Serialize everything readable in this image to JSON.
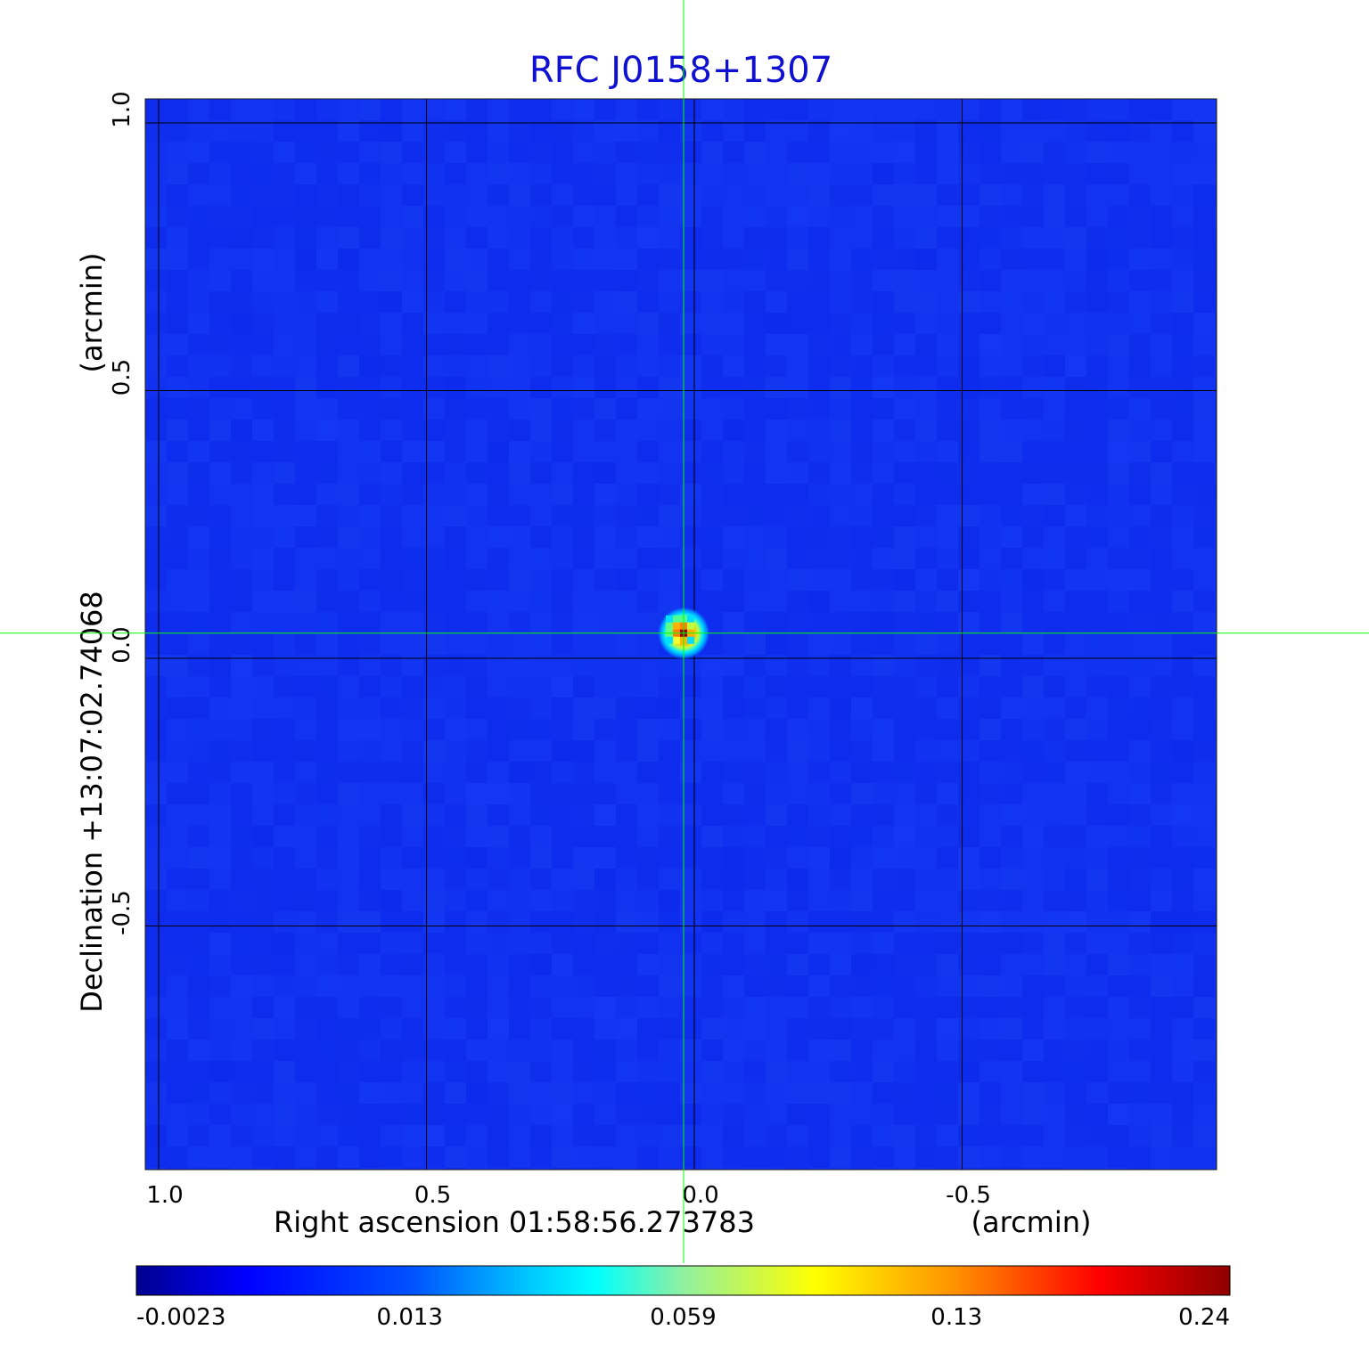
{
  "chart_data": {
    "type": "heatmap",
    "title": "RFC J0158+1307",
    "xlabel": "Right ascension  01:58:56.273783",
    "xunit": "(arcmin)",
    "ylabel": "Declination  +13:07:02.74068",
    "yunit": "(arcmin)",
    "xlim": [
      1.025,
      -0.975
    ],
    "ylim": [
      -0.955,
      1.045
    ],
    "x_ticks": [
      {
        "value": 1.0,
        "label": "1.0"
      },
      {
        "value": 0.5,
        "label": "0.5"
      },
      {
        "value": 0.0,
        "label": "0.0"
      },
      {
        "value": -0.5,
        "label": "-0.5"
      }
    ],
    "y_ticks": [
      {
        "value": 1.0,
        "label": "1.0"
      },
      {
        "value": 0.5,
        "label": "0.5"
      },
      {
        "value": 0.0,
        "label": "0.0"
      },
      {
        "value": -0.5,
        "label": "-0.5"
      }
    ],
    "grid": true,
    "crosshair": {
      "x": 0.02,
      "y": 0.047
    },
    "peak": {
      "x": 0.02,
      "y": 0.047,
      "value": 0.24
    },
    "background_value": 0.0,
    "colorbar": {
      "ticks": [
        {
          "value": -0.0023,
          "label": "-0.0023"
        },
        {
          "value": 0.013,
          "label": "0.013"
        },
        {
          "value": 0.059,
          "label": "0.059"
        },
        {
          "value": 0.13,
          "label": "0.13"
        },
        {
          "value": 0.24,
          "label": "0.24"
        }
      ],
      "colormap": "jet"
    }
  },
  "colors": {
    "title": "#1010d0",
    "grid": "#000000",
    "crosshair": "#00ff00",
    "background_map": "#1030f0"
  }
}
